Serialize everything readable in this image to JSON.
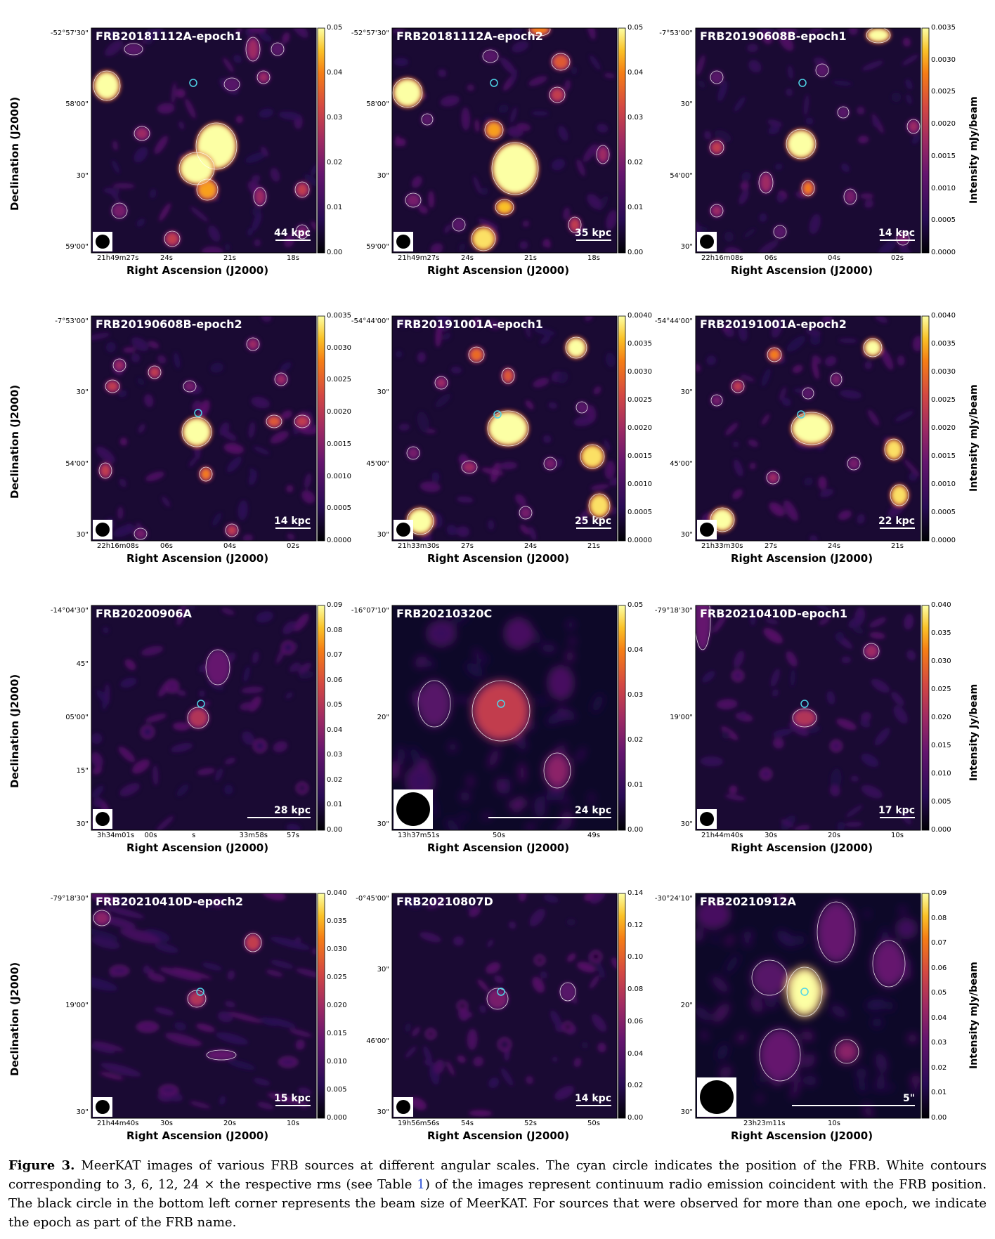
{
  "figure": {
    "caption_label": "Figure 3.",
    "caption_pre": "MeerKAT images of various FRB sources at different angular scales. The cyan circle indicates the position of the FRB. White contours corresponding to 3, 6, 12, 24 × the respective rms (see Table ",
    "caption_ref": "1",
    "caption_post": ") of the images represent continuum radio emission coincident with the FRB position. The black circle in the bottom left corner represents the beam size of MeerKAT. For sources that were observed for more than one epoch, we indicate the epoch as part of the FRB name."
  },
  "axis_labels": {
    "x": "Right Ascension (J2000)",
    "y": "Declination (J2000)",
    "cb_mjy": "Intensity mJy/beam",
    "cb_jy": "Intensity Jy/beam"
  },
  "panels": [
    {
      "id": "p1",
      "title": "FRB20181112A-epoch1",
      "scale": "44 kpc",
      "show_y": true,
      "cb_label": "",
      "yticks": [
        "-52°57'30\"",
        "58'00\"",
        "30\"",
        "59'00\""
      ],
      "xticks": [
        "21h49m27s",
        "24s",
        "21s",
        "18s"
      ],
      "cbticks": [
        "0.05",
        "0.04",
        "0.03",
        "0.02",
        "0.01",
        "0.00"
      ],
      "cb_max_scale": 0.05
    },
    {
      "id": "p2",
      "title": "FRB20181112A-epoch2",
      "scale": "35 kpc",
      "show_y": false,
      "cb_label": "",
      "yticks": [
        "-52°57'30\"",
        "58'00\"",
        "30\"",
        "59'00\""
      ],
      "xticks": [
        "21h49m27s",
        "24s",
        "21s",
        "18s"
      ],
      "cbticks": [
        "0.05",
        "0.04",
        "0.03",
        "0.02",
        "0.01",
        "0.00"
      ]
    },
    {
      "id": "p3",
      "title": "FRB20190608B-epoch1",
      "scale": "14 kpc",
      "show_y": false,
      "cb_label": "Intensity mJy/beam",
      "yticks": [
        "-7°53'00\"",
        "30\"",
        "54'00\"",
        "30\""
      ],
      "xticks": [
        "22h16m08s",
        "06s",
        "04s",
        "02s"
      ],
      "cbticks": [
        "0.0035",
        "0.0030",
        "0.0025",
        "0.0020",
        "0.0015",
        "0.0010",
        "0.0005",
        "0.0000"
      ]
    },
    {
      "id": "p4",
      "title": "FRB20190608B-epoch2",
      "scale": "14 kpc",
      "show_y": true,
      "cb_label": "",
      "yticks": [
        "-7°53'00\"",
        "30\"",
        "54'00\"",
        "30\""
      ],
      "xticks": [
        "22h16m08s",
        "06s",
        "04s",
        "02s"
      ],
      "cbticks": [
        "0.0035",
        "0.0030",
        "0.0025",
        "0.0020",
        "0.0015",
        "0.0010",
        "0.0005",
        "0.0000"
      ]
    },
    {
      "id": "p5",
      "title": "FRB20191001A-epoch1",
      "scale": "25 kpc",
      "show_y": false,
      "cb_label": "",
      "yticks": [
        "-54°44'00\"",
        "30\"",
        "45'00\"",
        "30\""
      ],
      "xticks": [
        "21h33m30s",
        "27s",
        "24s",
        "21s"
      ],
      "cbticks": [
        "0.0040",
        "0.0035",
        "0.0030",
        "0.0025",
        "0.0020",
        "0.0015",
        "0.0010",
        "0.0005",
        "0.0000"
      ]
    },
    {
      "id": "p6",
      "title": "FRB20191001A-epoch2",
      "scale": "22 kpc",
      "show_y": false,
      "cb_label": "Intensity mJy/beam",
      "yticks": [
        "-54°44'00\"",
        "30\"",
        "45'00\"",
        "30\""
      ],
      "xticks": [
        "21h33m30s",
        "27s",
        "24s",
        "21s"
      ],
      "cbticks": [
        "0.0040",
        "0.0035",
        "0.0030",
        "0.0025",
        "0.0020",
        "0.0015",
        "0.0010",
        "0.0005",
        "0.0000"
      ]
    },
    {
      "id": "p7",
      "title": "FRB20200906A",
      "scale": "28 kpc",
      "show_y": true,
      "cb_label": "",
      "yticks": [
        "-14°04'30\"",
        "45\"",
        "05'00\"",
        "15\"",
        "30\""
      ],
      "xticks": [
        "3h34m01s",
        "00s",
        "s",
        "33m58s",
        "57s"
      ],
      "cbticks": [
        "0.09",
        "0.08",
        "0.07",
        "0.06",
        "0.05",
        "0.04",
        "0.03",
        "0.02",
        "0.01",
        "0.00"
      ]
    },
    {
      "id": "p8",
      "title": "FRB20210320C",
      "scale": "24 kpc",
      "show_y": false,
      "cb_label": "",
      "yticks": [
        "-16°07'10\"",
        "20\"",
        "30\""
      ],
      "xticks": [
        "13h37m51s",
        "50s",
        "49s"
      ],
      "cbticks": [
        "0.05",
        "0.04",
        "0.03",
        "0.02",
        "0.01",
        "0.00"
      ]
    },
    {
      "id": "p9",
      "title": "FRB20210410D-epoch1",
      "scale": "17 kpc",
      "show_y": false,
      "cb_label": "Intensity Jy/beam",
      "yticks": [
        "-79°18'30\"",
        "19'00\"",
        "30\""
      ],
      "xticks": [
        "21h44m40s",
        "30s",
        "20s",
        "10s"
      ],
      "cbticks": [
        "0.040",
        "0.035",
        "0.030",
        "0.025",
        "0.020",
        "0.015",
        "0.010",
        "0.005",
        "0.000"
      ]
    },
    {
      "id": "p10",
      "title": "FRB20210410D-epoch2",
      "scale": "15 kpc",
      "show_y": true,
      "cb_label": "",
      "yticks": [
        "-79°18'30\"",
        "19'00\"",
        "30\""
      ],
      "xticks": [
        "21h44m40s",
        "30s",
        "20s",
        "10s"
      ],
      "cbticks": [
        "0.040",
        "0.035",
        "0.030",
        "0.025",
        "0.020",
        "0.015",
        "0.010",
        "0.005",
        "0.000"
      ]
    },
    {
      "id": "p11",
      "title": "FRB20210807D",
      "scale": "14 kpc",
      "show_y": false,
      "cb_label": "",
      "yticks": [
        "-0°45'00\"",
        "30\"",
        "46'00\"",
        "30\""
      ],
      "xticks": [
        "19h56m56s",
        "54s",
        "52s",
        "50s"
      ],
      "cbticks": [
        "0.14",
        "0.12",
        "0.10",
        "0.08",
        "0.06",
        "0.04",
        "0.02",
        "0.00"
      ]
    },
    {
      "id": "p12",
      "title": "FRB20210912A",
      "scale": "5\"",
      "show_y": false,
      "cb_label": "Intensity mJy/beam",
      "yticks": [
        "-30°24'10\"",
        "20\"",
        "30\""
      ],
      "xticks": [
        "23h23m11s",
        "10s"
      ],
      "cbticks": [
        "0.09",
        "0.08",
        "0.07",
        "0.06",
        "0.05",
        "0.04",
        "0.03",
        "0.02",
        "0.01",
        "0.00"
      ]
    }
  ],
  "colors": {
    "bg": "#000004",
    "frb_marker": "#4fd6e8",
    "contour": "#ffffff"
  }
}
